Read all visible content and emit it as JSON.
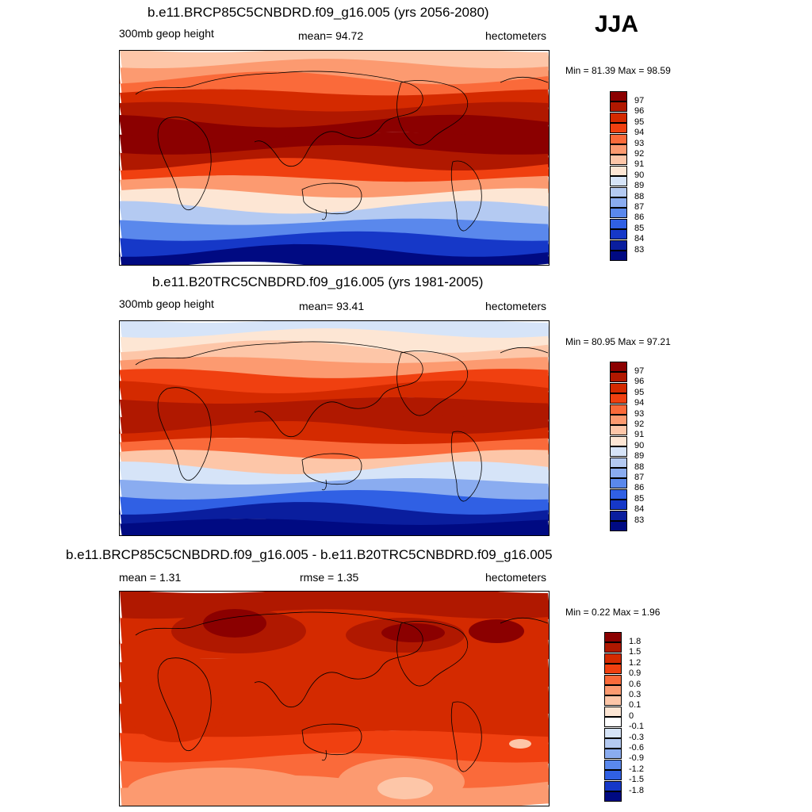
{
  "season": "JJA",
  "panels": [
    {
      "title": "b.e11.BRCP85C5CNBDRD.f09_g16.005 (yrs 2056-2080)",
      "left_label": "300mb geop height",
      "center_label": "mean=  94.72",
      "units": "hectometers",
      "min_max": "Min =  81.39 Max =  98.59",
      "colorbar": {
        "labels": [
          "97",
          "96",
          "95",
          "94",
          "93",
          "92",
          "91",
          "90",
          "89",
          "88",
          "87",
          "86",
          "85",
          "84",
          "83"
        ],
        "colors": [
          "#8b0000",
          "#b01800",
          "#d42a00",
          "#f04010",
          "#fa6a3a",
          "#fc9a70",
          "#fdc6a8",
          "#fde6d4",
          "#d6e4f8",
          "#b4caf2",
          "#8aacf0",
          "#5a88ec",
          "#3060e4",
          "#1638c8",
          "#0a1e9e",
          "#000a82"
        ]
      },
      "map_bands": [
        "#fdc6a8",
        "#fc9a70",
        "#fa6a3a",
        "#d42a00",
        "#b01800",
        "#8b0000",
        "#8b0000",
        "#b01800",
        "#f04010",
        "#fc9a70",
        "#fde6d4",
        "#b4caf2",
        "#5a88ec",
        "#1638c8",
        "#000a82"
      ]
    },
    {
      "title": "b.e11.B20TRC5CNBDRD.f09_g16.005 (yrs 1981-2005)",
      "left_label": "300mb geop height",
      "center_label": "mean=  93.41",
      "units": "hectometers",
      "min_max": "Min =  80.95 Max =  97.21",
      "colorbar": {
        "labels": [
          "97",
          "96",
          "95",
          "94",
          "93",
          "92",
          "91",
          "90",
          "89",
          "88",
          "87",
          "86",
          "85",
          "84",
          "83"
        ],
        "colors": [
          "#8b0000",
          "#b01800",
          "#d42a00",
          "#f04010",
          "#fa6a3a",
          "#fc9a70",
          "#fdc6a8",
          "#fde6d4",
          "#d6e4f8",
          "#b4caf2",
          "#8aacf0",
          "#5a88ec",
          "#3060e4",
          "#1638c8",
          "#0a1e9e",
          "#000a82"
        ]
      },
      "map_bands": [
        "#d6e4f8",
        "#fde6d4",
        "#fdc6a8",
        "#fc9a70",
        "#f04010",
        "#d42a00",
        "#b01800",
        "#b01800",
        "#d42a00",
        "#fa6a3a",
        "#fdc6a8",
        "#d6e4f8",
        "#8aacf0",
        "#3060e4",
        "#0a1e9e",
        "#000a82"
      ]
    },
    {
      "title": "b.e11.BRCP85C5CNBDRD.f09_g16.005 - b.e11.B20TRC5CNBDRD.f09_g16.005",
      "left_label": "mean =   1.31",
      "center_label": "rmse =   1.35",
      "units": "hectometers",
      "min_max": "Min =   0.22 Max =   1.96",
      "colorbar": {
        "labels": [
          "1.8",
          "1.5",
          "1.2",
          "0.9",
          "0.6",
          "0.3",
          "0.1",
          "0",
          "-0.1",
          "-0.3",
          "-0.6",
          "-0.9",
          "-1.2",
          "-1.5",
          "-1.8"
        ],
        "colors": [
          "#8b0000",
          "#b01800",
          "#d42a00",
          "#f04010",
          "#fa6a3a",
          "#fc9a70",
          "#fdc6a8",
          "#fde6d4",
          "#ffffff",
          "#d6e4f8",
          "#b4caf2",
          "#8aacf0",
          "#5a88ec",
          "#3060e4",
          "#1638c8",
          "#000a82"
        ]
      },
      "map_bands": [
        "#b01800",
        "#d42a00",
        "#d42a00",
        "#d42a00",
        "#d42a00",
        "#d42a00",
        "#f04010",
        "#fa6a3a",
        "#fc9a70"
      ]
    }
  ]
}
